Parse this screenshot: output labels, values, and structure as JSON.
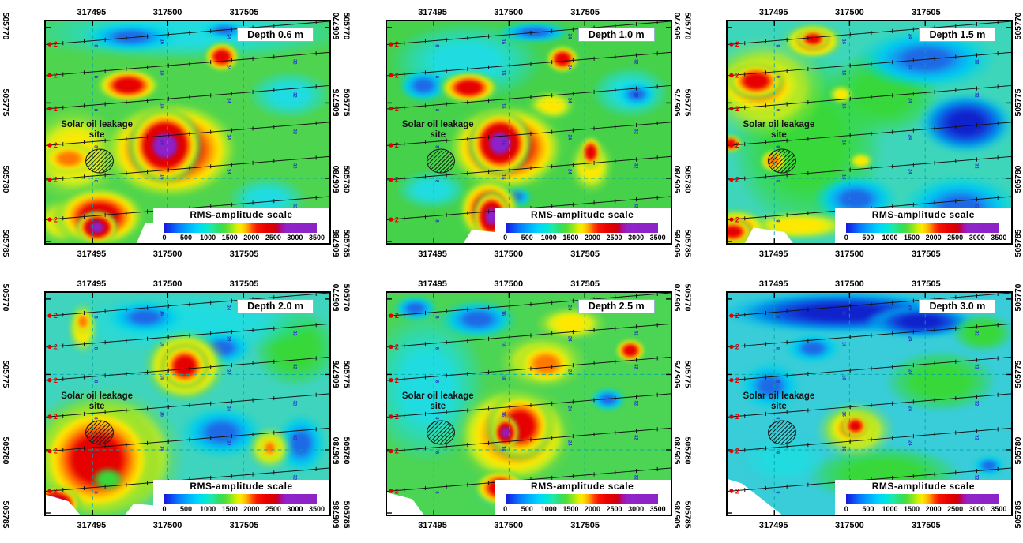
{
  "shared": {
    "site_label_line1": "Solar oil leakage",
    "site_label_line2": "site",
    "scale_title": "RMS-amplitude scale",
    "scale_ticks": [
      "0",
      "500",
      "1000",
      "1500",
      "2000",
      "2500",
      "3000",
      "3500"
    ],
    "x_tick_positions": [
      {
        "label": "317495",
        "pct": 16.5
      },
      {
        "label": "317500",
        "pct": 43.0
      },
      {
        "label": "317505",
        "pct": 69.7
      }
    ],
    "y_tick_positions": [
      {
        "label": "505770",
        "pct": 2.8,
        "grid": false
      },
      {
        "label": "505775",
        "pct": 36.8,
        "grid": true
      },
      {
        "label": "505780",
        "pct": 70.8,
        "grid": true
      },
      {
        "label": "505785",
        "pct": 99.3,
        "grid": false
      }
    ],
    "survey": {
      "lines": [
        [
          10.5,
          0
        ],
        [
          24.5,
          14
        ],
        [
          39.5,
          29
        ],
        [
          56,
          45.5
        ],
        [
          71.5,
          61
        ],
        [
          89.5,
          79
        ]
      ],
      "dot_label": "2",
      "station_labels": [
        "8",
        "16",
        "24",
        "32"
      ]
    },
    "colors": {
      "grid": "#00a6a6",
      "survey_line": "#151515",
      "station_label": "#2535c8",
      "line_start_dot": "#e00000",
      "colorbar_purple": "#8c24c8"
    }
  },
  "chart_data": {
    "type": "heatmap",
    "x_ticks": [
      317495,
      317500,
      317505
    ],
    "y_ticks": [
      505770,
      505775,
      505780,
      505785
    ],
    "x_range": [
      317492,
      317510.7
    ],
    "y_range": [
      505769.5,
      505784.5
    ],
    "grid": true,
    "colorbar": {
      "title": "RMS-amplitude scale",
      "ticks": [
        0,
        500,
        1000,
        1500,
        2000,
        2500,
        3000,
        3500
      ],
      "colors": [
        "#1818d8",
        "#0878ff",
        "#00d2ff",
        "#30e060",
        "#ffe800",
        "#ff4600",
        "#d80000",
        "#8c24c8"
      ]
    },
    "site_location": {
      "x": 317495.5,
      "y": 505778.8
    },
    "panels": [
      {
        "depth_label": "Depth 0.6 m",
        "base": "#4fd44f",
        "notch": "polygon(32% 100%, 35% 91%, 45% 91%, 48% 100%)",
        "blobs": [
          [
            "cool",
            50,
            5,
            120,
            26
          ],
          [
            "cold",
            30,
            7,
            34,
            14
          ],
          [
            "cold",
            63,
            4,
            16,
            8
          ],
          [
            "cool",
            86,
            33,
            30,
            22
          ],
          [
            "cool",
            78,
            80,
            28,
            20
          ],
          [
            "warm",
            10,
            60,
            36,
            44
          ],
          [
            "hot1",
            8,
            62,
            20,
            15
          ],
          [
            "warm",
            6,
            90,
            20,
            22
          ],
          [
            "hot2",
            62,
            16,
            14,
            15
          ],
          [
            "hot2",
            29,
            29,
            25,
            17
          ],
          [
            "hot2",
            44,
            58,
            54,
            50
          ],
          [
            "hot3",
            42,
            56,
            28,
            36
          ],
          [
            "hot2",
            19,
            88,
            36,
            30
          ],
          [
            "hot3",
            18,
            93,
            16,
            16
          ]
        ],
        "anomalies": [
          {
            "x": 317499.6,
            "y": 505777.9,
            "amp": 3500
          },
          {
            "x": 317495.2,
            "y": 505783.2,
            "amp": 3500
          },
          {
            "x": 317503.1,
            "y": 505771.9,
            "amp": 2500
          },
          {
            "x": 317497.2,
            "y": 505773.8,
            "amp": 2400
          }
        ]
      },
      {
        "depth_label": "Depth 1.0 m",
        "base": "#46d14b",
        "notch": "polygon(27% 100%, 30% 94%, 38% 95%, 40% 100%)",
        "blobs": [
          [
            "cool",
            28,
            18,
            55,
            36
          ],
          [
            "cold",
            13,
            29,
            18,
            15
          ],
          [
            "cold",
            52,
            5,
            26,
            10
          ],
          [
            "cool",
            86,
            32,
            28,
            24
          ],
          [
            "cold",
            88,
            33,
            14,
            12
          ],
          [
            "cool",
            16,
            76,
            26,
            18
          ],
          [
            "cold",
            45,
            79,
            13,
            11
          ],
          [
            "warm",
            58,
            38,
            18,
            14
          ],
          [
            "warm",
            72,
            65,
            16,
            26
          ],
          [
            "hot2",
            62,
            17,
            13,
            14
          ],
          [
            "hot2",
            29,
            30,
            23,
            16
          ],
          [
            "hot2",
            72,
            59,
            9,
            16
          ],
          [
            "hot2",
            42,
            57,
            46,
            44
          ],
          [
            "hot3",
            40,
            55,
            24,
            32
          ],
          [
            "hot2",
            36,
            85,
            24,
            32
          ],
          [
            "hot3",
            37,
            88,
            14,
            24
          ]
        ],
        "anomalies": [
          {
            "x": 317499.4,
            "y": 505777.7,
            "amp": 3500
          },
          {
            "x": 317498.8,
            "y": 505782.5,
            "amp": 3400
          },
          {
            "x": 317503.1,
            "y": 505772.1,
            "amp": 2400
          }
        ]
      },
      {
        "depth_label": "Depth 1.5 m",
        "base": "#3ed6bb",
        "notch": "polygon(6% 100%, 9% 93%, 20% 95%, 23% 100%)",
        "blobs": [
          [
            "green",
            28,
            55,
            55,
            80
          ],
          [
            "green",
            55,
            32,
            40,
            40
          ],
          [
            "cold",
            70,
            17,
            50,
            28
          ],
          [
            "cold2",
            84,
            46,
            34,
            28
          ],
          [
            "cold",
            82,
            84,
            42,
            30
          ],
          [
            "cold",
            45,
            80,
            30,
            22
          ],
          [
            "warm",
            13,
            30,
            44,
            46
          ],
          [
            "warm",
            25,
            92,
            40,
            14
          ],
          [
            "warm",
            40,
            33,
            9,
            9
          ],
          [
            "warm",
            47,
            63,
            9,
            8
          ],
          [
            "hot1",
            11,
            29,
            34,
            30
          ],
          [
            "hot1",
            30,
            9,
            22,
            17
          ],
          [
            "hot1",
            3,
            94,
            24,
            20
          ],
          [
            "hot1",
            16,
            63,
            10,
            11
          ],
          [
            "hot2",
            10,
            27,
            22,
            18
          ],
          [
            "hot2",
            30,
            8,
            13,
            10
          ],
          [
            "hot2",
            1,
            55,
            9,
            9
          ],
          [
            "hot2",
            2,
            95,
            15,
            13
          ]
        ],
        "anomalies": [
          {
            "x": 317493.8,
            "y": 505773.6,
            "amp": 3000
          },
          {
            "x": 317497.5,
            "y": 505770.8,
            "amp": 2600
          },
          {
            "x": 317492.3,
            "y": 505783.6,
            "amp": 2800
          },
          {
            "x": 317494.9,
            "y": 505778.9,
            "amp": 2200
          }
        ]
      },
      {
        "depth_label": "Depth 2.0 m",
        "base": "#3fd4be",
        "notch": "polygon(0% 100%, 0% 91%, 8% 94%, 12% 100%, 28% 100%, 31% 95%, 39% 96%, 42% 100%)",
        "blobs": [
          [
            "green",
            88,
            25,
            30,
            36
          ],
          [
            "cool",
            50,
            14,
            90,
            28
          ],
          [
            "cold",
            35,
            11,
            28,
            16
          ],
          [
            "cold",
            62,
            25,
            22,
            16
          ],
          [
            "cold",
            62,
            63,
            30,
            24
          ],
          [
            "cold",
            90,
            68,
            18,
            28
          ],
          [
            "warm",
            13,
            16,
            11,
            24
          ],
          [
            "hot1",
            13,
            13,
            7,
            12
          ],
          [
            "hot1",
            49,
            33,
            30,
            34
          ],
          [
            "hot2",
            49,
            33,
            19,
            23
          ],
          [
            "warm",
            79,
            70,
            16,
            20
          ],
          [
            "hot1",
            79,
            70,
            8,
            12
          ],
          [
            "hot1",
            20,
            74,
            58,
            64
          ],
          [
            "hot2",
            18,
            75,
            48,
            58
          ],
          [
            "hot3",
            3,
            95,
            20,
            17
          ],
          [
            "green",
            22,
            84,
            12,
            11
          ]
        ],
        "anomalies": [
          {
            "x": 317501.1,
            "y": 505774.5,
            "amp": 2600
          },
          {
            "x": 317495.3,
            "y": 505780.6,
            "amp": 2800
          },
          {
            "x": 317492.5,
            "y": 505783.5,
            "amp": 3500
          }
        ]
      },
      {
        "depth_label": "Depth 2.5 m",
        "base": "#4cd455",
        "notch": "polygon(0% 100%, 0% 90%, 9% 93%, 13% 100%)",
        "blobs": [
          [
            "cool",
            14,
            42,
            42,
            70
          ],
          [
            "cold",
            32,
            12,
            28,
            18
          ],
          [
            "cold",
            10,
            7,
            16,
            12
          ],
          [
            "cool",
            55,
            92,
            50,
            16
          ],
          [
            "cold",
            78,
            48,
            13,
            11
          ],
          [
            "warm",
            65,
            14,
            26,
            16
          ],
          [
            "warm",
            55,
            31,
            32,
            26
          ],
          [
            "hot1",
            56,
            32,
            22,
            20
          ],
          [
            "hot1",
            45,
            64,
            44,
            48
          ],
          [
            "hot2",
            47,
            60,
            26,
            34
          ],
          [
            "hot2",
            40,
            88,
            20,
            18
          ],
          [
            "hot3",
            42,
            63,
            10,
            16
          ],
          [
            "hot2",
            86,
            26,
            12,
            12
          ]
        ],
        "anomalies": [
          {
            "x": 317499.8,
            "y": 505778.9,
            "amp": 3300
          },
          {
            "x": 317502.4,
            "y": 505774.3,
            "amp": 2400
          },
          {
            "x": 317508.0,
            "y": 505773.4,
            "amp": 2300
          }
        ]
      },
      {
        "depth_label": "Depth 3.0 m",
        "base": "#38cdd8",
        "notch": "polygon(0% 100%, 0% 84%, 5% 86%, 19% 100%)",
        "blobs": [
          [
            "cold2",
            40,
            9,
            85,
            20
          ],
          [
            "cold2",
            68,
            13,
            40,
            16
          ],
          [
            "cold",
            15,
            42,
            22,
            22
          ],
          [
            "cold",
            30,
            25,
            20,
            14
          ],
          [
            "green",
            75,
            40,
            40,
            28
          ],
          [
            "green",
            55,
            82,
            55,
            26
          ],
          [
            "green",
            90,
            18,
            22,
            18
          ],
          [
            "cool",
            20,
            75,
            30,
            22
          ],
          [
            "warm",
            45,
            62,
            28,
            26
          ],
          [
            "hot1",
            44,
            61,
            19,
            18
          ],
          [
            "hot2",
            45,
            60,
            11,
            12
          ],
          [
            "cold",
            92,
            78,
            12,
            10
          ]
        ],
        "anomalies": [
          {
            "x": 317500.3,
            "y": 505778.4,
            "amp": 2500
          },
          {
            "x": 317499.4,
            "y": 505771.0,
            "amp": 300
          }
        ]
      }
    ]
  }
}
